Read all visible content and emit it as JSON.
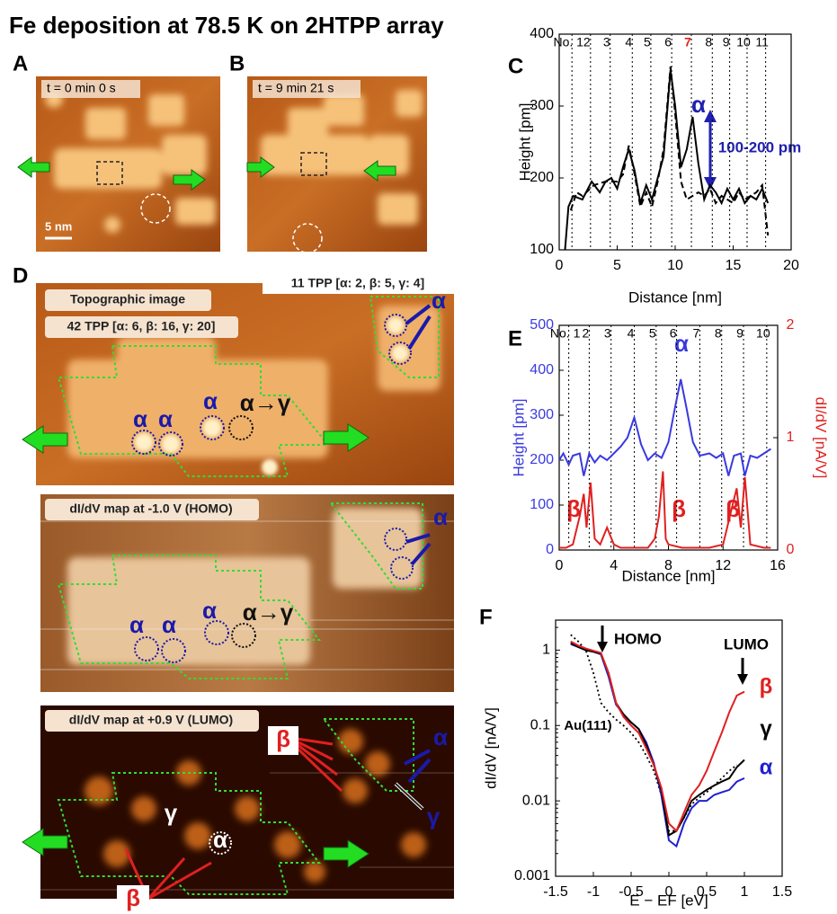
{
  "title": "Fe deposition at 78.5 K on 2HTPP array",
  "panels": {
    "A": {
      "label": "A",
      "time": "t = 0 min 0 s",
      "scale_bar": "5 nm"
    },
    "B": {
      "label": "B",
      "time": "t = 9 min 21 s"
    },
    "D": {
      "label": "D",
      "topographic": {
        "title": "Topographic image",
        "count_outer": "11 TPP [α: 2, β: 5, γ: 4]",
        "count_inner": "42 TPP [α: 6, β: 16, γ: 20]",
        "marks": [
          "α",
          "α",
          "α",
          "α→γ",
          "α"
        ]
      },
      "homo": {
        "title": "dI/dV map at -1.0 V (HOMO)",
        "marks": [
          "α",
          "α",
          "α",
          "α→γ",
          "α"
        ]
      },
      "lumo": {
        "title": "dI/dV map at +0.9 V (LUMO)",
        "marks": [
          "β",
          "γ",
          "α",
          "β",
          "α",
          "γ"
        ]
      }
    }
  },
  "chart_data": [
    {
      "type": "line",
      "label": "C",
      "xlabel": "Distance [nm]",
      "ylabel": "Height [pm]",
      "xlim": [
        0,
        20
      ],
      "ylim": [
        100,
        400
      ],
      "xticks": [
        0,
        5,
        10,
        15,
        20
      ],
      "yticks": [
        100,
        200,
        300,
        400
      ],
      "markers": {
        "x": [
          1.1,
          2.7,
          4.4,
          6.3,
          7.9,
          9.7,
          11.4,
          13.2,
          14.7,
          16.2,
          17.8
        ],
        "labels": [
          "No. 1",
          "2",
          "3",
          "4",
          "5",
          "6",
          "7",
          "8",
          "9",
          "10",
          "11"
        ],
        "colors": [
          "#000",
          "#000",
          "#000",
          "#000",
          "#000",
          "#000",
          "#e02020",
          "#000",
          "#000",
          "#000",
          "#000"
        ]
      },
      "annotations": {
        "alpha": "α",
        "range": "100-200 pm"
      },
      "series": [
        {
          "color": "#000000",
          "dash": "solid",
          "x": [
            0.5,
            0.8,
            1.2,
            2,
            2.8,
            3.5,
            4,
            4.5,
            5,
            5.5,
            6,
            6.5,
            7,
            7.5,
            8,
            8.5,
            9,
            9.6,
            10,
            10.5,
            11,
            11.5,
            12,
            12.5,
            13,
            13.5,
            14,
            14.5,
            15,
            15.5,
            16,
            16.5,
            17,
            17.5,
            18
          ],
          "values": [
            100,
            160,
            175,
            170,
            195,
            180,
            195,
            200,
            185,
            215,
            240,
            210,
            165,
            190,
            170,
            200,
            230,
            350,
            300,
            215,
            240,
            285,
            220,
            170,
            190,
            180,
            165,
            185,
            170,
            185,
            165,
            175,
            170,
            185,
            165
          ]
        },
        {
          "color": "#000000",
          "dash": "dashed",
          "x": [
            1,
            1.5,
            2,
            3,
            4,
            5,
            5.5,
            6,
            6.5,
            7,
            7.5,
            8,
            8.5,
            9,
            9.6,
            10,
            10.5,
            11,
            12,
            12.5,
            13,
            13.5,
            14,
            15,
            15.5,
            16,
            17,
            17.5,
            18
          ],
          "values": [
            155,
            180,
            175,
            190,
            195,
            195,
            205,
            245,
            205,
            160,
            180,
            160,
            195,
            240,
            355,
            290,
            195,
            170,
            180,
            175,
            185,
            165,
            175,
            165,
            180,
            170,
            180,
            190,
            120
          ]
        }
      ]
    },
    {
      "type": "line",
      "label": "E",
      "xlabel": "Distance [nm]",
      "ylabel": "Height [pm]",
      "y2label": "dI/dV [nA/V]",
      "y_color": "#3a3ae0",
      "y2_color": "#e02020",
      "xlim": [
        0,
        16
      ],
      "ylim": [
        0,
        500
      ],
      "y2lim": [
        0,
        2
      ],
      "xticks": [
        0,
        4,
        8,
        12,
        16
      ],
      "yticks": [
        0,
        100,
        200,
        300,
        400,
        500
      ],
      "y2ticks": [
        0,
        1,
        2
      ],
      "markers": {
        "x": [
          0.7,
          2.2,
          3.8,
          5.5,
          7.1,
          8.6,
          10.3,
          11.9,
          13.5,
          15.2
        ],
        "labels": [
          "No. 1",
          "2",
          "3",
          "4",
          "5",
          "6",
          "7",
          "8",
          "9",
          "10"
        ]
      },
      "annotations": [
        "α",
        "β",
        "β",
        "β"
      ],
      "series": [
        {
          "color": "#3a3ae0",
          "dash": "solid",
          "x": [
            0,
            0.3,
            0.7,
            1,
            1.5,
            1.8,
            2.2,
            2.6,
            3,
            3.5,
            4,
            4.5,
            5,
            5.5,
            6,
            6.5,
            7,
            7.5,
            8,
            8.5,
            8.9,
            9.3,
            9.8,
            10.3,
            11,
            11.5,
            12,
            12.4,
            12.8,
            13.3,
            13.6,
            14,
            14.5,
            15,
            15.5
          ],
          "values": [
            200,
            215,
            190,
            210,
            215,
            165,
            215,
            195,
            210,
            200,
            215,
            230,
            250,
            295,
            235,
            200,
            215,
            205,
            240,
            320,
            380,
            320,
            240,
            210,
            215,
            205,
            215,
            165,
            210,
            215,
            165,
            210,
            205,
            215,
            225
          ]
        },
        {
          "color": "#e02020",
          "dash": "solid",
          "axis": "y2",
          "x": [
            0,
            0.5,
            1,
            1.5,
            1.8,
            2,
            2.3,
            2.6,
            3,
            3.5,
            4,
            4.5,
            5.5,
            6.5,
            7,
            7.3,
            7.6,
            7.8,
            8,
            9,
            10,
            11,
            12,
            12.5,
            13,
            13.3,
            13.6,
            14,
            15,
            15.5
          ],
          "values": [
            0.02,
            0.02,
            0.05,
            0.3,
            0.5,
            0.2,
            0.6,
            0.1,
            0.05,
            0.2,
            0.05,
            0.02,
            0.02,
            0.02,
            0.1,
            0.3,
            0.7,
            0.1,
            0.05,
            0.02,
            0.02,
            0.02,
            0.05,
            0.3,
            0.55,
            0.2,
            0.65,
            0.05,
            0.02,
            0.02
          ]
        }
      ]
    },
    {
      "type": "line",
      "label": "F",
      "log_y": true,
      "xlabel": "E − EF [eV]",
      "ylabel": "dI/dV [nA/V]",
      "xlim": [
        -1.5,
        1.5
      ],
      "ylim": [
        0.001,
        2.5
      ],
      "xticks": [
        -1.5,
        -1,
        -0.5,
        0,
        0.5,
        1,
        1.5
      ],
      "yticks": [
        0.001,
        0.01,
        0.1,
        1
      ],
      "annotations": {
        "homo": "HOMO",
        "lumo": "LUMO"
      },
      "series": [
        {
          "name": "Au(111)",
          "color": "#000000",
          "dash": "dotted",
          "x": [
            -1.3,
            -1.2,
            -1.1,
            -1,
            -0.9,
            -0.8,
            -0.7,
            -0.6,
            -0.5,
            -0.4,
            -0.3,
            -0.2,
            -0.1,
            0,
            0.1,
            0.2,
            0.3,
            0.4,
            0.5,
            0.6,
            0.7,
            0.8,
            0.9,
            1
          ],
          "values": [
            1.6,
            1.3,
            1,
            0.5,
            0.2,
            0.15,
            0.12,
            0.1,
            0.08,
            0.06,
            0.04,
            0.025,
            0.012,
            0.004,
            0.004,
            0.006,
            0.009,
            0.011,
            0.013,
            0.016,
            0.02,
            0.025,
            0.03,
            null
          ]
        },
        {
          "name": "α",
          "color": "#2020d0",
          "dash": "solid",
          "x": [
            -1.3,
            -1.2,
            -1.1,
            -1,
            -0.9,
            -0.8,
            -0.7,
            -0.6,
            -0.5,
            -0.4,
            -0.3,
            -0.2,
            -0.1,
            0,
            0.1,
            0.2,
            0.3,
            0.4,
            0.5,
            0.6,
            0.7,
            0.8,
            0.9,
            1
          ],
          "values": [
            1.2,
            1.1,
            1,
            0.95,
            0.88,
            0.45,
            0.19,
            0.14,
            0.11,
            0.09,
            0.06,
            0.032,
            0.012,
            0.003,
            0.0025,
            0.005,
            0.008,
            0.01,
            0.01,
            0.012,
            0.013,
            0.014,
            0.018,
            0.02
          ]
        },
        {
          "name": "γ",
          "color": "#000000",
          "dash": "solid",
          "x": [
            -1.3,
            -1.2,
            -1.1,
            -1,
            -0.9,
            -0.8,
            -0.7,
            -0.6,
            -0.5,
            -0.4,
            -0.3,
            -0.2,
            -0.1,
            0,
            0.1,
            0.2,
            0.3,
            0.4,
            0.5,
            0.6,
            0.7,
            0.8,
            0.9,
            1
          ],
          "values": [
            1.25,
            1.1,
            1,
            0.95,
            0.9,
            0.5,
            0.2,
            0.14,
            0.11,
            0.09,
            0.055,
            0.03,
            0.014,
            0.0035,
            0.004,
            0.006,
            0.01,
            0.012,
            0.014,
            0.016,
            0.018,
            0.02,
            0.028,
            0.035
          ]
        },
        {
          "name": "β",
          "color": "#e02020",
          "dash": "solid",
          "x": [
            -1.3,
            -1.2,
            -1.1,
            -1,
            -0.9,
            -0.8,
            -0.7,
            -0.6,
            -0.5,
            -0.4,
            -0.3,
            -0.2,
            -0.1,
            0,
            0.1,
            0.2,
            0.3,
            0.4,
            0.5,
            0.6,
            0.7,
            0.8,
            0.9,
            1
          ],
          "values": [
            1.3,
            1.15,
            1.05,
            0.98,
            0.92,
            0.5,
            0.2,
            0.13,
            0.1,
            0.08,
            0.05,
            0.03,
            0.015,
            0.005,
            0.004,
            0.007,
            0.012,
            0.016,
            0.025,
            0.045,
            0.08,
            0.15,
            0.25,
            0.28
          ]
        }
      ]
    }
  ]
}
